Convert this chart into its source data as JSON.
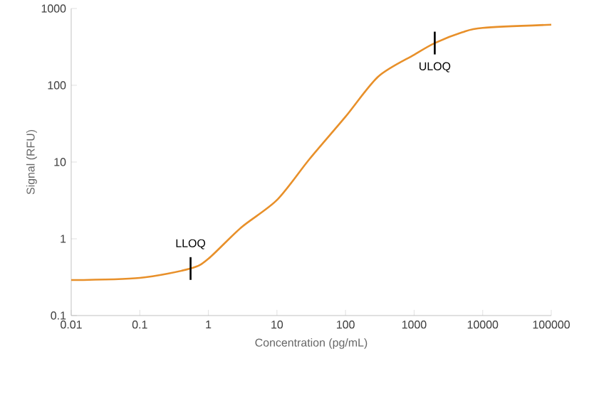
{
  "chart_data": {
    "type": "line",
    "xlabel": "Concentration (pg/mL)",
    "ylabel": "Signal (RFU)",
    "log": "xy",
    "x": [
      0.01,
      0.1,
      0.55,
      1,
      3,
      10,
      30,
      100,
      300,
      1000,
      2000,
      5000,
      10000,
      100000
    ],
    "series": [
      {
        "color": "#e8902a",
        "values": [
          0.29,
          0.31,
          0.41,
          0.55,
          1.4,
          3.2,
          11,
          39,
          130,
          250,
          355,
          490,
          560,
          615
        ]
      }
    ],
    "xlim": [
      0.01,
      100000
    ],
    "ylim": [
      0.1,
      1000
    ],
    "xticks": [
      0.01,
      0.1,
      1,
      10,
      100,
      1000,
      10000,
      100000
    ],
    "yticks": [
      0.1,
      1,
      10,
      100,
      1000
    ],
    "grid": false,
    "marker": "none",
    "line_style": "solid",
    "annotations": [
      {
        "text": "LLOQ",
        "x": 0.55,
        "y": 0.41
      },
      {
        "text": "ULOQ",
        "x": 2000,
        "y": 355
      }
    ]
  }
}
